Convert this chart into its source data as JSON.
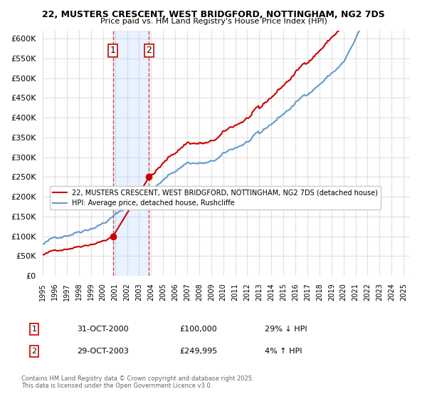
{
  "title": "22, MUSTERS CRESCENT, WEST BRIDGFORD, NOTTINGHAM, NG2 7DS",
  "subtitle": "Price paid vs. HM Land Registry's House Price Index (HPI)",
  "background_color": "#ffffff",
  "plot_bg_color": "#ffffff",
  "grid_color": "#e0e0e0",
  "sale1_date": "2000-10-31",
  "sale1_label": "31-OCT-2000",
  "sale1_price": 100000,
  "sale1_hpi_text": "29% ↓ HPI",
  "sale2_date": "2003-10-29",
  "sale2_label": "29-OCT-2003",
  "sale2_price": 249995,
  "sale2_hpi_text": "4% ↑ HPI",
  "vline_color": "#cc0000",
  "vline_alpha": 0.4,
  "vline_style": "dashed",
  "vshade_color": "#aaccff",
  "vshade_alpha": 0.25,
  "red_line_color": "#cc0000",
  "blue_line_color": "#6699cc",
  "legend_red_label": "22, MUSTERS CRESCENT, WEST BRIDGFORD, NOTTINGHAM, NG2 7DS (detached house)",
  "legend_blue_label": "HPI: Average price, detached house, Rushcliffe",
  "footer_text": "Contains HM Land Registry data © Crown copyright and database right 2025.\nThis data is licensed under the Open Government Licence v3.0.",
  "ylim": [
    0,
    620000
  ],
  "yticks": [
    0,
    50000,
    100000,
    150000,
    200000,
    250000,
    300000,
    350000,
    400000,
    450000,
    500000,
    550000,
    600000
  ],
  "xlim_start": 1995.2,
  "xlim_end": 2025.5,
  "xticks": [
    1995,
    1996,
    1997,
    1998,
    1999,
    2000,
    2001,
    2002,
    2003,
    2004,
    2005,
    2006,
    2007,
    2008,
    2009,
    2010,
    2011,
    2012,
    2013,
    2014,
    2015,
    2016,
    2017,
    2018,
    2019,
    2020,
    2021,
    2022,
    2023,
    2024,
    2025
  ]
}
